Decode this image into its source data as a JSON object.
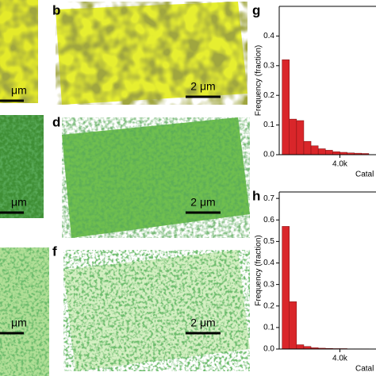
{
  "panels": [
    {
      "label": "b",
      "scale_bar": "2 μm"
    },
    {
      "label": "d",
      "scale_bar": "2 μm"
    },
    {
      "label": "f",
      "scale_bar": "2 μm"
    }
  ],
  "left_scale_bars": [
    "μm",
    "μm",
    "μm"
  ],
  "chart_data": [
    {
      "type": "histogram",
      "label": "g",
      "ylabel": "Frequency (fraction)",
      "xlabel": "Catal",
      "color": "#d9262a",
      "bins": [
        0,
        500,
        1000,
        1500,
        2000,
        2500,
        3000,
        3500,
        4000,
        4500,
        5000,
        5500,
        6000
      ],
      "values": [
        0.32,
        0.12,
        0.115,
        0.045,
        0.03,
        0.02,
        0.015,
        0.01,
        0.008,
        0.006,
        0.005,
        0.004
      ],
      "xlim": [
        -200,
        6500
      ],
      "ylim": [
        0,
        0.5
      ],
      "xticks": [
        {
          "value": 4000,
          "label": "4.0k"
        }
      ],
      "yticks": [
        {
          "value": 0,
          "label": "0.0"
        },
        0.1,
        0.2,
        0.3,
        0.4
      ]
    },
    {
      "type": "histogram",
      "label": "h",
      "ylabel": "Frequency (fraction)",
      "xlabel": "Catal",
      "color": "#d9262a",
      "bins": [
        0,
        500,
        1000,
        1500,
        2000,
        2500,
        3000,
        3500,
        4000,
        4500,
        5000,
        5500,
        6000
      ],
      "values": [
        0.57,
        0.22,
        0.02,
        0.012,
        0.006,
        0.004,
        0.003,
        0.002,
        0.002,
        0.001,
        0.001,
        0.001
      ],
      "xlim": [
        -200,
        6500
      ],
      "ylim": [
        0,
        0.73
      ],
      "xticks": [
        {
          "value": 4000,
          "label": "4.0k"
        }
      ],
      "yticks": [
        {
          "value": 0,
          "label": "0.0"
        },
        0.1,
        0.2,
        0.3,
        0.4,
        0.5,
        0.6,
        0.7
      ]
    }
  ]
}
